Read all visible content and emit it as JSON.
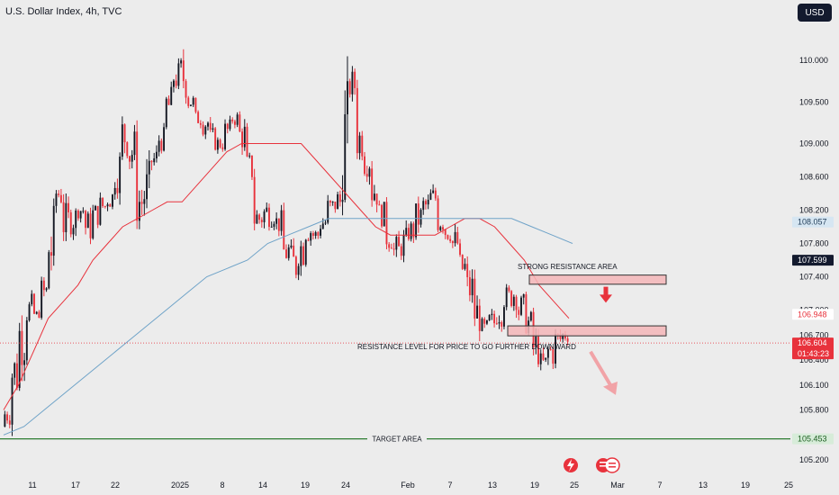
{
  "header": {
    "title": "U.S. Dollar Index, 4h, TVC",
    "currency_button": "USD"
  },
  "colors": {
    "background": "#ececec",
    "up_candle": "#131722",
    "down_candle": "#e8323c",
    "ma_fast": "#e8323c",
    "ma_slow": "#6fa3c8",
    "target_line": "#2e7d32",
    "zone_fill": "#f4b6b9",
    "zone_stroke": "#333333"
  },
  "chart_data": {
    "type": "candlestick",
    "symbol": "U.S. Dollar Index",
    "timeframe": "4h",
    "ylim": [
      105.2,
      110.5
    ],
    "y_ticks": [
      105.2,
      105.8,
      106.1,
      106.4,
      106.7,
      107.0,
      107.4,
      107.8,
      108.2,
      108.6,
      109.0,
      109.5,
      110.0
    ],
    "y_tick_labels": [
      "105.200",
      "105.800",
      "106.100",
      "106.400",
      "106.700",
      "107.000",
      "107.400",
      "107.800",
      "108.200",
      "108.600",
      "109.000",
      "109.500",
      "110.000"
    ],
    "x_tick_labels": [
      "11",
      "17",
      "22",
      "2025",
      "8",
      "14",
      "19",
      "24",
      "Feb",
      "7",
      "13",
      "19",
      "25",
      "Mar",
      "7",
      "13",
      "19",
      "25"
    ],
    "price_path": [
      [
        105.6,
        105.9
      ],
      [
        105.9,
        106.6
      ],
      [
        106.3,
        107.1
      ],
      [
        106.8,
        107.2
      ],
      [
        106.9,
        107.0
      ],
      [
        107.0,
        107.4
      ],
      [
        107.2,
        108.3
      ],
      [
        108.2,
        108.6
      ],
      [
        107.8,
        108.3
      ],
      [
        107.9,
        108.3
      ],
      [
        108.1,
        108.3
      ],
      [
        107.8,
        108.2
      ],
      [
        108.0,
        108.3
      ],
      [
        108.1,
        108.4
      ],
      [
        108.2,
        108.5
      ],
      [
        108.4,
        109.0
      ],
      [
        108.8,
        109.4
      ],
      [
        108.6,
        109.2
      ],
      [
        108.0,
        108.6
      ],
      [
        108.0,
        108.8
      ],
      [
        108.6,
        109.0
      ],
      [
        108.9,
        109.2
      ],
      [
        109.2,
        109.7
      ],
      [
        109.6,
        110.0
      ],
      [
        109.5,
        110.1
      ],
      [
        109.4,
        109.6
      ],
      [
        109.2,
        109.4
      ],
      [
        109.1,
        109.4
      ],
      [
        108.9,
        109.2
      ],
      [
        108.9,
        109.1
      ],
      [
        109.0,
        109.3
      ],
      [
        109.2,
        109.4
      ],
      [
        108.9,
        109.3
      ],
      [
        108.5,
        108.9
      ],
      [
        107.9,
        108.3
      ],
      [
        107.9,
        108.4
      ],
      [
        108.0,
        108.4
      ],
      [
        107.9,
        108.2
      ],
      [
        107.5,
        107.9
      ],
      [
        107.3,
        107.8
      ],
      [
        107.5,
        108.0
      ],
      [
        107.8,
        108.1
      ],
      [
        107.8,
        108.0
      ],
      [
        107.9,
        108.2
      ],
      [
        108.0,
        108.4
      ],
      [
        108.1,
        108.5
      ],
      [
        108.3,
        109.8
      ],
      [
        109.5,
        109.9
      ],
      [
        108.8,
        109.3
      ],
      [
        108.6,
        109.0
      ],
      [
        108.2,
        108.7
      ],
      [
        108.0,
        108.3
      ],
      [
        107.7,
        108.1
      ],
      [
        107.5,
        107.9
      ],
      [
        107.6,
        108.0
      ],
      [
        107.8,
        108.1
      ],
      [
        107.9,
        108.3
      ],
      [
        108.1,
        108.4
      ],
      [
        108.2,
        108.5
      ],
      [
        107.9,
        108.3
      ],
      [
        107.8,
        108.1
      ],
      [
        107.6,
        108.0
      ],
      [
        107.3,
        107.7
      ],
      [
        107.0,
        107.5
      ],
      [
        106.7,
        107.2
      ],
      [
        106.6,
        106.9
      ],
      [
        106.7,
        107.0
      ],
      [
        106.8,
        107.2
      ],
      [
        107.0,
        107.3
      ],
      [
        107.0,
        107.4
      ],
      [
        106.8,
        107.2
      ],
      [
        106.7,
        107.0
      ],
      [
        106.3,
        106.8
      ],
      [
        106.2,
        106.5
      ],
      [
        106.3,
        106.7
      ],
      [
        106.5,
        106.8
      ],
      [
        106.6,
        106.8
      ]
    ],
    "series": [
      {
        "name": "",
        "type": "line",
        "values": [
          105.8,
          106.1,
          106.5,
          106.9,
          107.1,
          107.3,
          107.6,
          107.8,
          108.0,
          108.1,
          108.2,
          108.3,
          108.3,
          108.5,
          108.7,
          108.9,
          109.0,
          109.0,
          109.0,
          109.0,
          109.0,
          108.8,
          108.6,
          108.4,
          108.2,
          108.0,
          107.9,
          107.9,
          107.9,
          107.9,
          108.0,
          108.1,
          108.1,
          108.0,
          107.8,
          107.6,
          107.3,
          107.1,
          106.9
        ]
      },
      {
        "name": "",
        "type": "line",
        "values": [
          105.5,
          105.6,
          105.8,
          106.0,
          106.2,
          106.4,
          106.6,
          106.8,
          107.0,
          107.2,
          107.4,
          107.5,
          107.6,
          107.8,
          107.9,
          108.0,
          108.1,
          108.1,
          108.1,
          108.1,
          108.1,
          108.1,
          108.1,
          108.1,
          108.1,
          108.1,
          108.0,
          107.9,
          107.8
        ]
      }
    ],
    "price_labels": [
      {
        "value": "108.057",
        "color": "#d6e6f2",
        "text_color": "#1f3b57"
      },
      {
        "value": "107.599",
        "color": "#131a2e",
        "text_color": "#ffffff"
      },
      {
        "value": "106.948",
        "color": "#ffffff",
        "text_color": "#e8323c"
      },
      {
        "value": "106.604",
        "sub": "01:43:23",
        "color": "#e8323c",
        "text_color": "#ffffff"
      },
      {
        "value": "105.453",
        "color": "#d7ecd9",
        "text_color": "#1b5e20"
      }
    ],
    "annotations": {
      "strong_resistance": "STRONG RESISTANCE AREA",
      "resistance_level": "RESISTANCE LEVEL FOR PRICE TO GO FURTHER DOWNWARD",
      "target": "TARGET AREA"
    },
    "zones": [
      {
        "name": "strong-resistance",
        "low": 107.31,
        "high": 107.42
      },
      {
        "name": "resistance-level",
        "low": 106.69,
        "high": 106.81
      }
    ],
    "target_level": 105.453,
    "current_price_level": 106.604,
    "grid": false
  }
}
